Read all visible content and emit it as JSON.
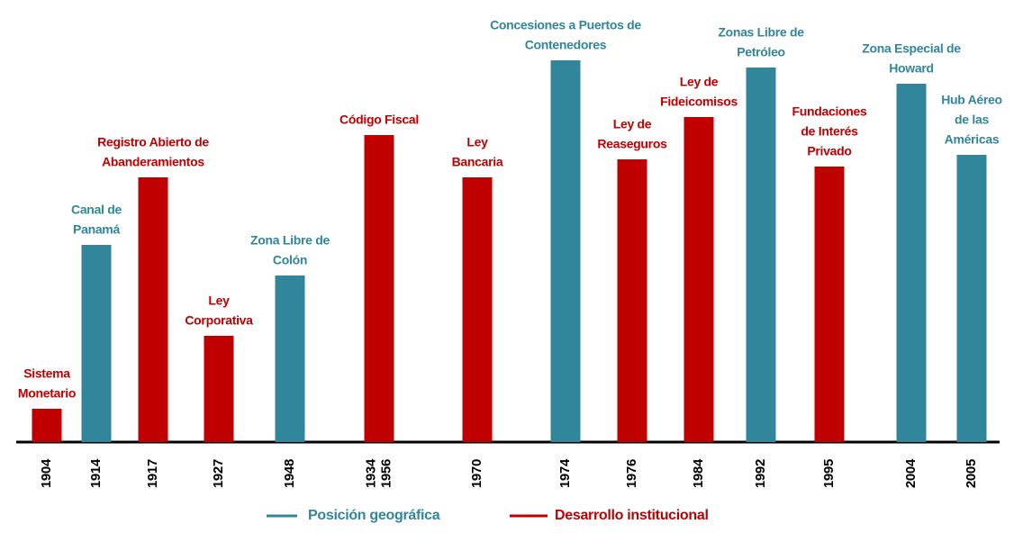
{
  "chart_data": {
    "type": "bar",
    "categories": [
      [
        "1904"
      ],
      [
        "1914"
      ],
      [
        "1917"
      ],
      [
        "1927"
      ],
      [
        "1948"
      ],
      [
        "1934",
        "1956"
      ],
      [
        "1970"
      ],
      [
        "1974"
      ],
      [
        "1976"
      ],
      [
        "1984"
      ],
      [
        "1992"
      ],
      [
        "1995"
      ],
      [
        "2004"
      ],
      [
        "2005"
      ]
    ],
    "labels": [
      [
        "Sistema",
        "Monetario"
      ],
      [
        "Canal de",
        "Panamá"
      ],
      [
        "Registro Abierto de",
        "Abanderamientos"
      ],
      [
        "Ley",
        "Corporativa"
      ],
      [
        "Zona Libre de",
        "Colón"
      ],
      [
        "Código Fiscal"
      ],
      [
        "Ley",
        "Bancaria"
      ],
      [
        "Concesiones a Puertos de",
        "Contenedores"
      ],
      [
        "Ley de",
        "Reaseguros"
      ],
      [
        "Ley de",
        "Fideicomisos"
      ],
      [
        "Zonas Libre de",
        "Petróleo"
      ],
      [
        "Fundaciones",
        "de Interés",
        "Privado"
      ],
      [
        "Zona Especial de",
        "Howard"
      ],
      [
        "Hub Aéreo",
        "de las",
        "Américas"
      ]
    ],
    "series": [
      {
        "name": "Posición geográfica",
        "color": "#31869b",
        "values": [
          null,
          219,
          null,
          null,
          185,
          null,
          null,
          424,
          null,
          null,
          416,
          null,
          398,
          319
        ]
      },
      {
        "name": "Desarrollo institucional",
        "color": "#c00000",
        "values": [
          37,
          null,
          294,
          118,
          null,
          341,
          294,
          null,
          314,
          361,
          null,
          306,
          null,
          null
        ]
      }
    ],
    "ylim": [
      0,
      430
    ]
  }
}
